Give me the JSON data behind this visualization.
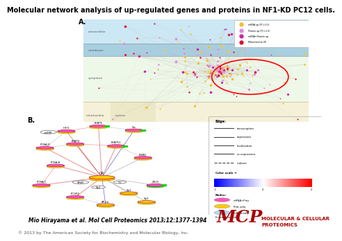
{
  "title": "Molecular network analysis of up-regulated genes and proteins in NF1-KD PC12 cells.",
  "title_fontsize": 7.0,
  "title_fontweight": "bold",
  "bg_color": "#ffffff",
  "panel_A_label": "A.",
  "panel_B_label": "B.",
  "citation": "Mio Hirayama et al. Mol Cell Proteomics 2013;12:1377-1394",
  "citation_fontsize": 5.5,
  "citation_fontstyle": "italic",
  "copyright": "© 2013 by The American Society for Biochemistry and Molecular Biology, Inc.",
  "copyright_fontsize": 4.5,
  "mcp_text": "MCP",
  "mcp_color": "#aa0000",
  "mcp_fontsize": 18,
  "mcp_subtitle": "MOLECULAR & CELLULAR\nPROTEOMICS",
  "mcp_subtitle_color": "#aa0000",
  "mcp_subtitle_fontsize": 5.0
}
